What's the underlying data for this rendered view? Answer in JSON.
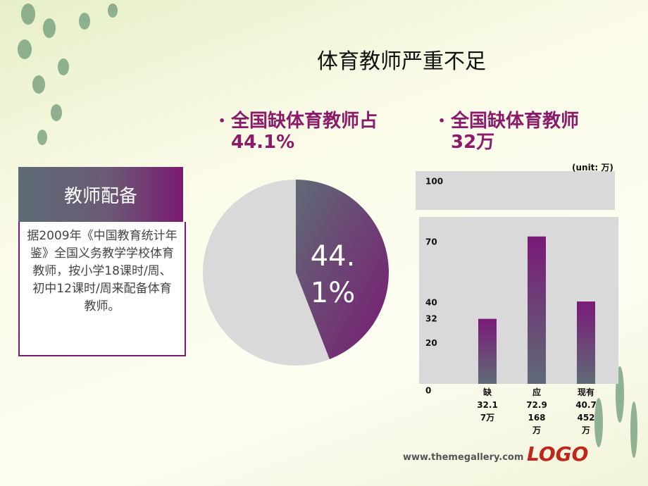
{
  "title": "体育教师严重不足",
  "sidebar": {
    "heading": "教师配备",
    "text": "据2009年《中国教育统计年鉴》全国义务教学学校体育教师，按小学18课时/周、初中12课时/周来配备体育教师。"
  },
  "bullets": [
    "全国缺体育教师占44.1%",
    "全国缺体育教师32万"
  ],
  "chart_data": [
    {
      "type": "pie",
      "values": [
        44.1,
        55.9
      ],
      "value_labels": [
        "44.1%",
        null
      ],
      "colors": [
        "#7a1a72",
        "#d9d9d9"
      ]
    },
    {
      "type": "bar",
      "unit_label": "(unit: 万)",
      "categories": [
        "缺",
        "应",
        "现有"
      ],
      "values": [
        32.17,
        72.9168,
        40.7452
      ],
      "value_labels": [
        "32.17万",
        "72.9168万",
        "40.7452万"
      ],
      "ylim": [
        0,
        100
      ],
      "yticks": [
        0,
        20,
        32,
        40,
        70,
        100
      ],
      "color": "#7a1a78"
    }
  ],
  "footer": {
    "url": "www.themegallery.com",
    "logo": "LOGO"
  }
}
